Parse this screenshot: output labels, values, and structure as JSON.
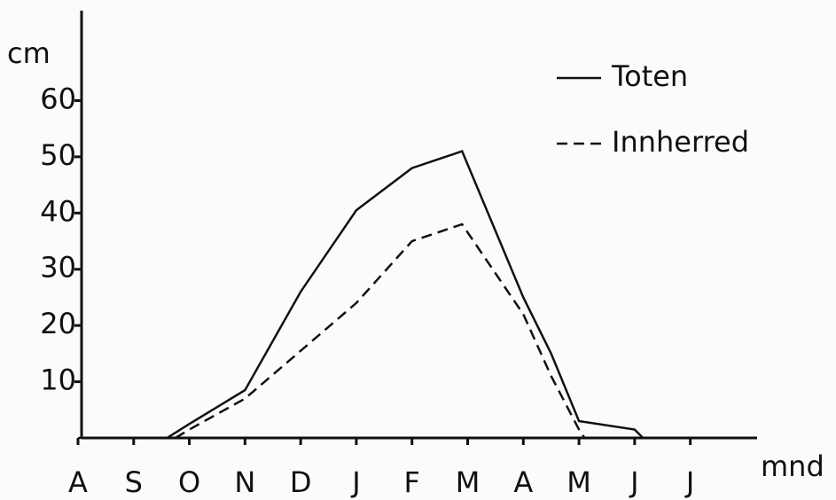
{
  "chart_data": {
    "type": "line",
    "y_label": "cm",
    "x_label": "mnd",
    "xlim": [
      0,
      12.2
    ],
    "ylim": [
      0,
      76
    ],
    "xticks": [
      {
        "value": 0,
        "label": "A"
      },
      {
        "value": 1,
        "label": "S"
      },
      {
        "value": 2,
        "label": "O"
      },
      {
        "value": 3,
        "label": "N"
      },
      {
        "value": 4,
        "label": "D"
      },
      {
        "value": 5,
        "label": "J"
      },
      {
        "value": 6,
        "label": "F"
      },
      {
        "value": 7,
        "label": "M"
      },
      {
        "value": 8,
        "label": "A"
      },
      {
        "value": 9,
        "label": "M"
      },
      {
        "value": 10,
        "label": "J"
      },
      {
        "value": 11,
        "label": "J"
      }
    ],
    "yticks": [
      10,
      20,
      30,
      40,
      50,
      60
    ],
    "legend": "top-right",
    "series": [
      {
        "name": "Toten",
        "color": "#111111",
        "dash": "solid",
        "x": [
          0,
          1.6,
          2,
          3,
          4,
          5,
          6,
          6.9,
          7.45,
          8,
          8.5,
          9,
          10,
          10.15,
          11
        ],
        "values": [
          0,
          0,
          2.5,
          8.5,
          26,
          40.5,
          48,
          51,
          38,
          25,
          15,
          3,
          1.5,
          0,
          0
        ]
      },
      {
        "name": "Innherred",
        "color": "#111111",
        "dash": "dashed",
        "x": [
          1.75,
          2,
          3,
          4,
          5,
          6,
          6.9,
          8,
          8.5,
          9,
          9.1
        ],
        "values": [
          0,
          1.5,
          7,
          15.5,
          24,
          35,
          38,
          22,
          11,
          1.5,
          0
        ]
      }
    ]
  }
}
